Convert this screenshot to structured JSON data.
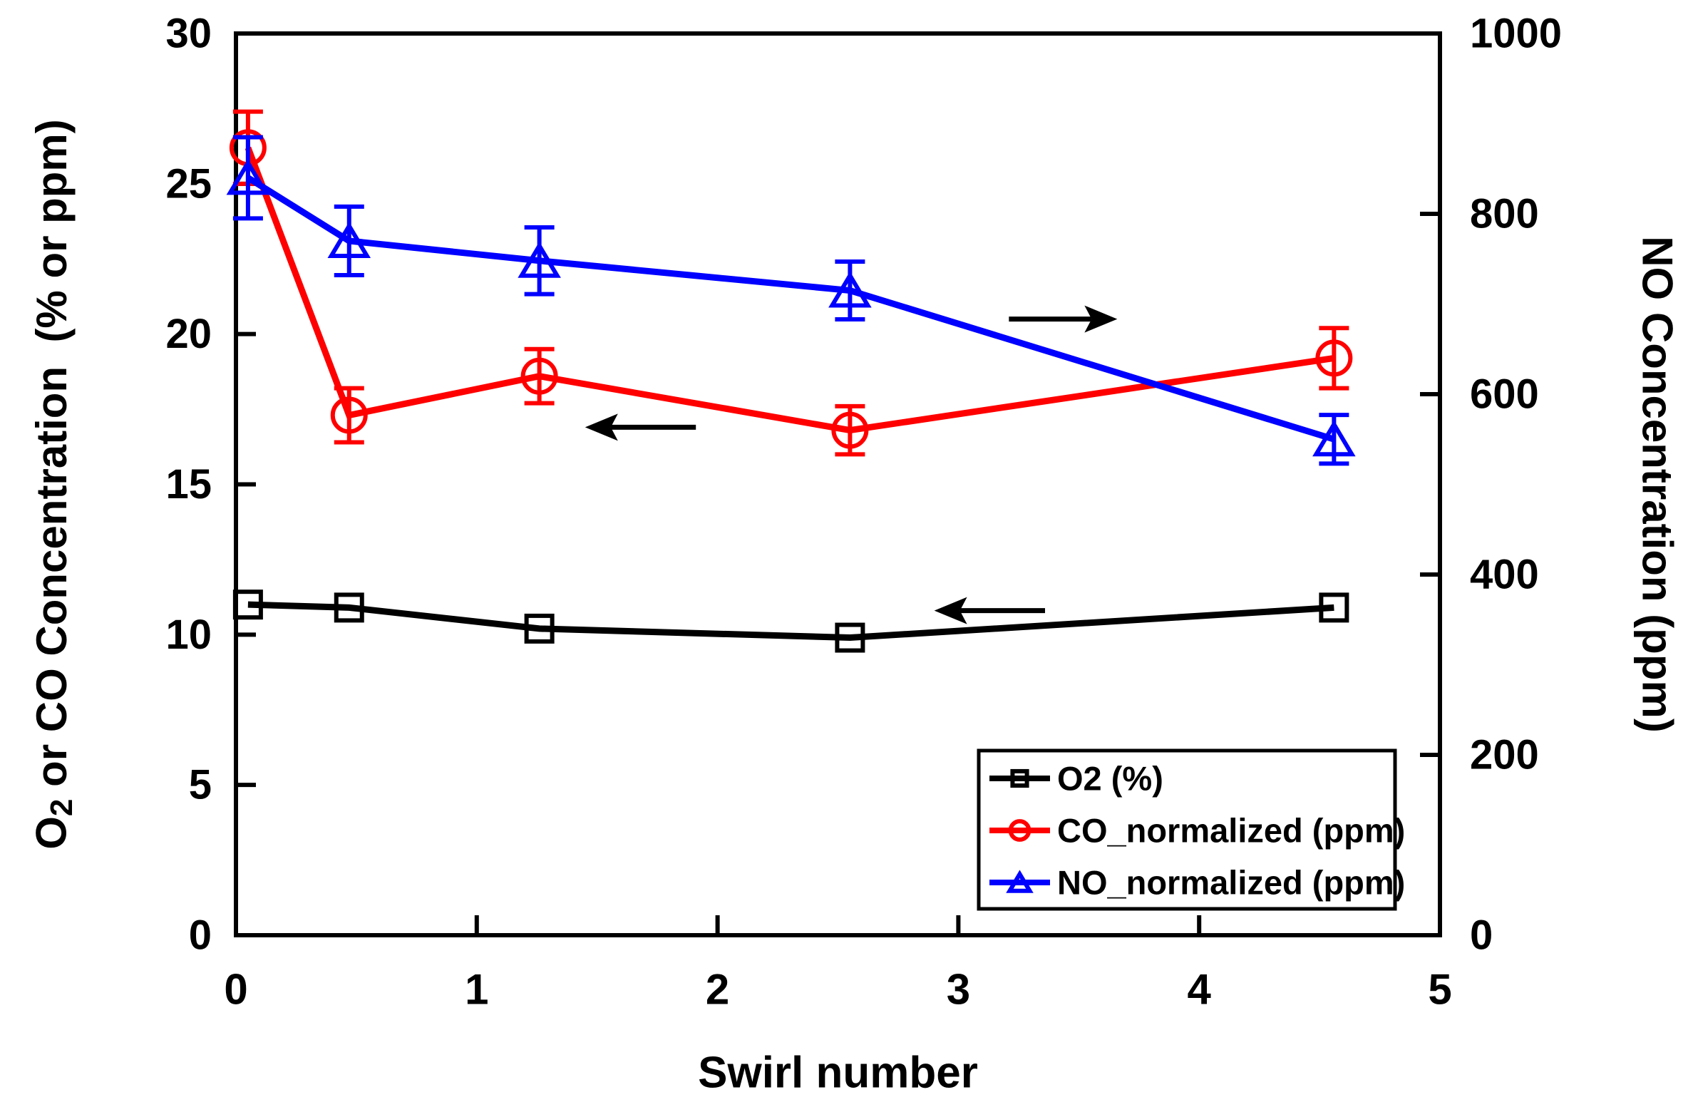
{
  "figure": {
    "background_color": "#ffffff",
    "frame_color": "#000000"
  },
  "chart_data": {
    "type": "line",
    "title": "",
    "xlabel": "Swirl number",
    "ylabel_left": {
      "pre": "O",
      "sub": "2",
      "post": " or CO Concentration  (% or ppm)"
    },
    "ylabel_right": "NO Concentration (ppm)",
    "xlim": [
      0,
      5
    ],
    "x_ticks": [
      0,
      1,
      2,
      3,
      4,
      5
    ],
    "ylim_left": [
      0,
      30
    ],
    "left_ticks": [
      0,
      5,
      10,
      15,
      20,
      25,
      30
    ],
    "ylim_right": [
      0,
      1000
    ],
    "right_ticks": [
      0,
      200,
      400,
      600,
      800,
      1000
    ],
    "grid": false,
    "legend_position": "inside-lower-right",
    "x": [
      0.05,
      0.47,
      1.26,
      2.55,
      4.56
    ],
    "series": [
      {
        "name": "O2 (%)",
        "axis": "left",
        "marker": "square",
        "color": "#000000",
        "values": [
          11.0,
          10.9,
          10.2,
          9.9,
          10.9
        ],
        "errors": [
          0,
          0,
          0,
          0,
          0
        ]
      },
      {
        "name": "CO_normalized (ppm)",
        "axis": "left",
        "marker": "circle",
        "color": "#ff0000",
        "values": [
          26.2,
          17.3,
          18.6,
          16.8,
          19.2
        ],
        "errors": [
          1.2,
          0.9,
          0.9,
          0.8,
          1.0
        ]
      },
      {
        "name": "NO_normalized (ppm)",
        "axis": "right",
        "marker": "triangle",
        "color": "#0000ff",
        "values": [
          840,
          770,
          748,
          715,
          550
        ],
        "errors": [
          45,
          38,
          37,
          32,
          27
        ]
      }
    ],
    "annotations": [
      {
        "type": "arrow",
        "direction": "left",
        "x_from": 1.91,
        "x_to": 1.45,
        "y_axis": "left",
        "y": 16.9,
        "meaning": "CO curve reads on left axis"
      },
      {
        "type": "arrow",
        "direction": "left",
        "x_from": 3.36,
        "x_to": 2.9,
        "y_axis": "left",
        "y": 10.8,
        "meaning": "O2 curve reads on left axis"
      },
      {
        "type": "arrow",
        "direction": "right",
        "x_from": 3.21,
        "x_to": 3.66,
        "y_axis": "left",
        "y": 20.5,
        "meaning": "NO curve reads on right axis"
      }
    ]
  }
}
